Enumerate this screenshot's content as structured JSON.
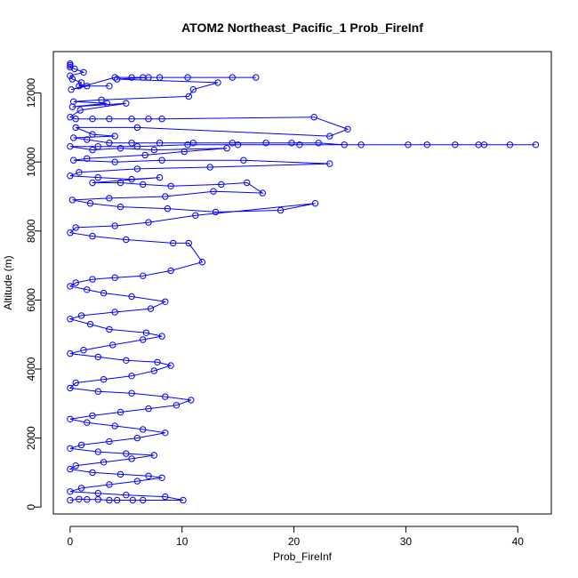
{
  "chart_data": {
    "type": "line",
    "title": "ATOM2 Northeast_Pacific_1 Prob_FireInf",
    "xlabel": "Prob_FireInf",
    "ylabel": "Altitude (m)",
    "xlim": [
      -1.5,
      43
    ],
    "ylim": [
      -200,
      13200
    ],
    "x_ticks": [
      0,
      10,
      20,
      30,
      40
    ],
    "y_ticks": [
      0,
      2000,
      4000,
      6000,
      8000,
      10000,
      12000
    ],
    "x_tick_labels": [
      "0",
      "10",
      "20",
      "30",
      "40"
    ],
    "y_tick_labels": [
      "0",
      "2000",
      "4000",
      "6000",
      "8000",
      "10000",
      "12000"
    ],
    "grid": false,
    "legend": "none",
    "marker": "open-circle",
    "series_color": "#0000ff",
    "series": [
      {
        "points": [
          [
            0,
            12850
          ],
          [
            0,
            12800
          ],
          [
            0,
            12750
          ],
          [
            0.4,
            12700
          ],
          [
            1.2,
            12600
          ],
          [
            0,
            12500
          ],
          [
            0.2,
            12400
          ],
          [
            1,
            12300
          ],
          [
            0.8,
            12200
          ],
          [
            3.5,
            12200
          ],
          [
            1.5,
            12200
          ],
          [
            0.1,
            12100
          ],
          [
            4,
            12450
          ],
          [
            5.5,
            12450
          ],
          [
            6.5,
            12450
          ],
          [
            8,
            12450
          ],
          [
            10.5,
            12450
          ],
          [
            14.5,
            12450
          ],
          [
            16.6,
            12450
          ],
          [
            7,
            12450
          ],
          [
            4.2,
            12400
          ],
          [
            13.2,
            12300
          ],
          [
            11,
            12100
          ],
          [
            10.6,
            11900
          ],
          [
            2.8,
            11800
          ],
          [
            0.3,
            11750
          ],
          [
            3.3,
            11700
          ],
          [
            0.2,
            11600
          ],
          [
            5,
            11700
          ],
          [
            0.9,
            11500
          ],
          [
            0,
            11300
          ],
          [
            0.5,
            11250
          ],
          [
            2,
            11250
          ],
          [
            3.5,
            11250
          ],
          [
            5.5,
            11250
          ],
          [
            7,
            11250
          ],
          [
            8.2,
            11250
          ],
          [
            21.8,
            11300
          ],
          [
            24.8,
            10950
          ],
          [
            23.2,
            10750
          ],
          [
            6,
            11000
          ],
          [
            0.5,
            11000
          ],
          [
            2,
            10800
          ],
          [
            4,
            10750
          ],
          [
            0.3,
            10700
          ],
          [
            1.5,
            10650
          ],
          [
            3.5,
            10550
          ],
          [
            5.5,
            10550
          ],
          [
            8,
            10550
          ],
          [
            11,
            10550
          ],
          [
            14.5,
            10550
          ],
          [
            17.5,
            10550
          ],
          [
            19.8,
            10550
          ],
          [
            22.2,
            10550
          ],
          [
            24.5,
            10500
          ],
          [
            26,
            10500
          ],
          [
            30.2,
            10500
          ],
          [
            31.9,
            10500
          ],
          [
            34.4,
            10500
          ],
          [
            36.5,
            10500
          ],
          [
            37,
            10500
          ],
          [
            39.3,
            10500
          ],
          [
            41.6,
            10500
          ],
          [
            20.5,
            10500
          ],
          [
            15,
            10500
          ],
          [
            10.5,
            10500
          ],
          [
            6,
            10450
          ],
          [
            2.5,
            10450
          ],
          [
            0,
            10450
          ],
          [
            2,
            10350
          ],
          [
            4.5,
            10400
          ],
          [
            7.5,
            10350
          ],
          [
            14,
            10400
          ],
          [
            10.2,
            10300
          ],
          [
            6.7,
            10200
          ],
          [
            1.5,
            10100
          ],
          [
            0.3,
            10050
          ],
          [
            4,
            10000
          ],
          [
            8.2,
            10050
          ],
          [
            15.5,
            10050
          ],
          [
            23.2,
            9950
          ],
          [
            12.5,
            9850
          ],
          [
            6,
            9800
          ],
          [
            0.8,
            9700
          ],
          [
            0,
            9600
          ],
          [
            2.5,
            9550
          ],
          [
            5.5,
            9500
          ],
          [
            8,
            9550
          ],
          [
            2,
            9400
          ],
          [
            4.5,
            9400
          ],
          [
            6.5,
            9350
          ],
          [
            9,
            9300
          ],
          [
            13.5,
            9350
          ],
          [
            15.8,
            9400
          ],
          [
            17.2,
            9100
          ],
          [
            12.8,
            9150
          ],
          [
            8.5,
            9000
          ],
          [
            3.5,
            8950
          ],
          [
            0.2,
            8900
          ],
          [
            1.8,
            8800
          ],
          [
            4.5,
            8700
          ],
          [
            8.7,
            8650
          ],
          [
            13,
            8550
          ],
          [
            18.8,
            8600
          ],
          [
            21.9,
            8800
          ],
          [
            11.2,
            8450
          ],
          [
            7,
            8250
          ],
          [
            4,
            8150
          ],
          [
            0.5,
            8100
          ],
          [
            0,
            7950
          ],
          [
            2,
            7850
          ],
          [
            5,
            7750
          ],
          [
            9.2,
            7650
          ],
          [
            10.6,
            7650
          ],
          [
            11.8,
            7100
          ],
          [
            9,
            6850
          ],
          [
            6.5,
            6700
          ],
          [
            4,
            6650
          ],
          [
            2,
            6600
          ],
          [
            0.5,
            6500
          ],
          [
            0,
            6400
          ],
          [
            1.5,
            6300
          ],
          [
            3,
            6200
          ],
          [
            5.5,
            6100
          ],
          [
            8.5,
            5950
          ],
          [
            7.2,
            5750
          ],
          [
            4,
            5650
          ],
          [
            1,
            5550
          ],
          [
            0,
            5450
          ],
          [
            1.8,
            5300
          ],
          [
            3.5,
            5150
          ],
          [
            6.8,
            5050
          ],
          [
            8.2,
            4950
          ],
          [
            6.5,
            4850
          ],
          [
            3.8,
            4700
          ],
          [
            1.2,
            4550
          ],
          [
            0,
            4450
          ],
          [
            2.5,
            4350
          ],
          [
            5,
            4250
          ],
          [
            7.8,
            4200
          ],
          [
            9,
            4100
          ],
          [
            7.5,
            3950
          ],
          [
            5.5,
            3800
          ],
          [
            3,
            3700
          ],
          [
            0.5,
            3600
          ],
          [
            0,
            3450
          ],
          [
            2.5,
            3350
          ],
          [
            5.5,
            3300
          ],
          [
            8.5,
            3200
          ],
          [
            10.8,
            3100
          ],
          [
            9.5,
            2950
          ],
          [
            7,
            2850
          ],
          [
            4.5,
            2750
          ],
          [
            2,
            2650
          ],
          [
            0,
            2550
          ],
          [
            1.5,
            2450
          ],
          [
            4,
            2350
          ],
          [
            6.5,
            2250
          ],
          [
            8.5,
            2150
          ],
          [
            6,
            2000
          ],
          [
            3.5,
            1900
          ],
          [
            1,
            1800
          ],
          [
            0,
            1700
          ],
          [
            2.5,
            1600
          ],
          [
            5,
            1550
          ],
          [
            7.5,
            1500
          ],
          [
            5.5,
            1400
          ],
          [
            3,
            1300
          ],
          [
            0.5,
            1200
          ],
          [
            0,
            1100
          ],
          [
            2,
            1000
          ],
          [
            4.5,
            950
          ],
          [
            7,
            900
          ],
          [
            8.2,
            850
          ],
          [
            6,
            750
          ],
          [
            3.5,
            650
          ],
          [
            1,
            550
          ],
          [
            0,
            450
          ],
          [
            2.5,
            400
          ],
          [
            5,
            350
          ],
          [
            8.5,
            300
          ],
          [
            10.1,
            200
          ],
          [
            6.5,
            200
          ],
          [
            5.6,
            200
          ],
          [
            4.2,
            200
          ],
          [
            3.5,
            200
          ],
          [
            2.5,
            220
          ],
          [
            1.5,
            220
          ],
          [
            0.8,
            230
          ],
          [
            0,
            200
          ]
        ]
      }
    ]
  }
}
